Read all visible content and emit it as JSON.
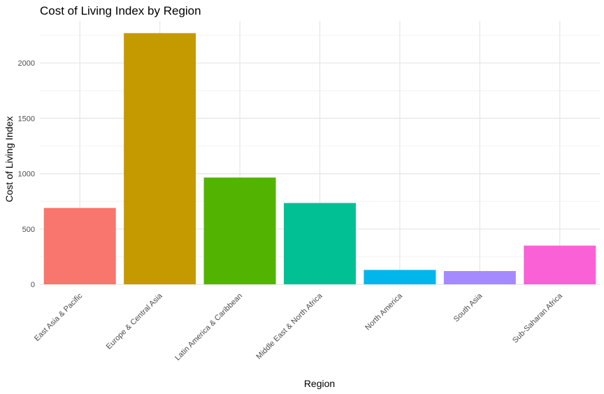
{
  "chart_data": {
    "type": "bar",
    "title": "Cost of Living Index by Region",
    "xlabel": "Region",
    "ylabel": "Cost of Living Index",
    "categories": [
      "East Asia & Pacific",
      "Europe & Central Asia",
      "Latin America & Caribbean",
      "Middle East & North Africa",
      "North America",
      "South Asia",
      "Sub-Saharan Africa"
    ],
    "values": [
      690,
      2270,
      965,
      735,
      130,
      120,
      350
    ],
    "colors": [
      "#F8766D",
      "#C49A00",
      "#53B400",
      "#00C094",
      "#00B6EB",
      "#A58AFF",
      "#FB61D7"
    ],
    "ylim": [
      0,
      2380
    ],
    "yticks": [
      0,
      500,
      1000,
      1500,
      2000
    ],
    "grid": true,
    "legend": "none"
  }
}
